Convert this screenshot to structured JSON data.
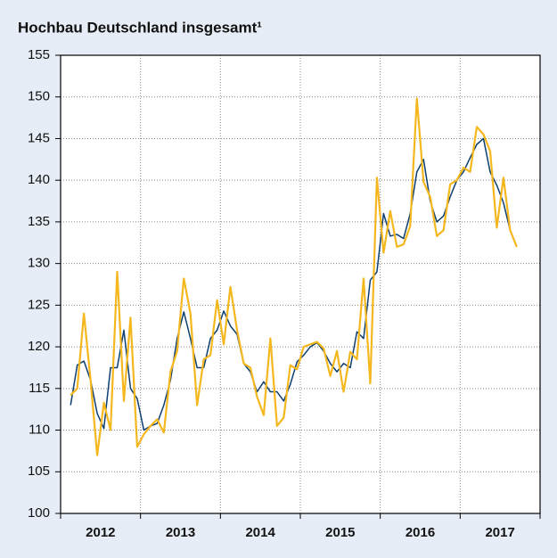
{
  "chart_data": {
    "type": "line",
    "title": "Hochbau Deutschland insgesamt¹",
    "categories": [
      null,
      null,
      null,
      null,
      null,
      null,
      "2012",
      null,
      null,
      null,
      null,
      null,
      null,
      null,
      null,
      null,
      null,
      null,
      "2013",
      null,
      null,
      null,
      null,
      null,
      null,
      null,
      null,
      null,
      null,
      null,
      "2014",
      null,
      null,
      null,
      null,
      null,
      null,
      null,
      null,
      null,
      null,
      null,
      "2015",
      null,
      null,
      null,
      null,
      null,
      null,
      null,
      null,
      null,
      null,
      null,
      "2016",
      null,
      null,
      null,
      null,
      null,
      null,
      null,
      null,
      null,
      null,
      null,
      "2017",
      null,
      null,
      null,
      null,
      null
    ],
    "series": [
      {
        "color": "#0d3f70",
        "values": [
          null,
          113,
          117.8,
          118.3,
          116,
          112,
          110.2,
          117.5,
          117.5,
          122,
          115,
          113.8,
          110,
          110.5,
          110.8,
          113,
          116,
          121,
          124.2,
          121,
          117.5,
          117.5,
          121,
          122,
          124.3,
          122.5,
          121.5,
          118,
          117,
          114.6,
          115.8,
          114.6,
          114.6,
          113.5,
          115.5,
          118.2,
          119,
          120,
          120.5,
          119.5,
          118,
          117,
          118,
          117.5,
          121.8,
          121,
          128,
          129,
          136,
          133.3,
          133.5,
          133,
          136,
          141,
          142.5,
          137.5,
          135,
          135.7,
          138,
          140,
          141,
          142.7,
          144.3,
          145,
          141,
          139.4,
          137.3,
          134,
          null,
          null,
          null,
          null
        ]
      },
      {
        "color": "#f5b71e",
        "values": [
          null,
          114.2,
          115,
          124,
          116,
          107,
          113.3,
          110,
          129,
          113.5,
          123.5,
          108,
          109.5,
          110.5,
          111.3,
          109.7,
          117,
          119.5,
          128.2,
          124,
          113,
          118.5,
          119,
          125.6,
          120.3,
          127.2,
          122,
          118,
          117.5,
          114,
          111.8,
          121,
          110.5,
          111.5,
          117.8,
          117.3,
          120,
          120.3,
          120.6,
          119.8,
          116.5,
          119.5,
          114.6,
          119.4,
          118.5,
          128.2,
          115.6,
          140.3,
          131.3,
          136.3,
          132,
          132.3,
          134.5,
          149.8,
          139.8,
          138,
          133.3,
          134,
          139.5,
          140,
          141.5,
          141,
          146.4,
          145.5,
          143.5,
          134.3,
          140.3,
          134,
          132,
          null,
          null,
          null
        ]
      }
    ],
    "ylim": [
      100,
      155
    ],
    "yticks": [
      100,
      105,
      110,
      115,
      120,
      125,
      130,
      135,
      140,
      145,
      150,
      155
    ],
    "grid": true
  }
}
